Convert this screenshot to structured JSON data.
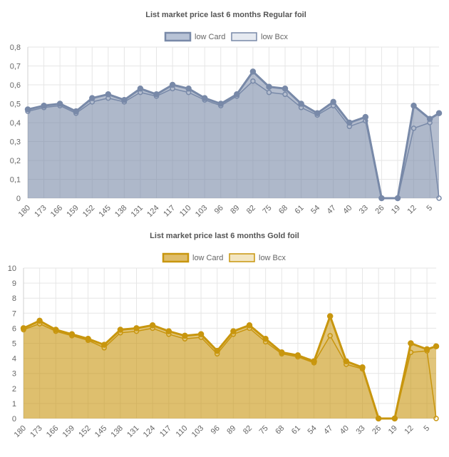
{
  "charts": [
    {
      "title": "List market price last 6 months Regular foil",
      "legend": [
        {
          "label": "low Card",
          "color": "#7889a8",
          "fill": "#b8c3d6"
        },
        {
          "label": "low Bcx",
          "color": "#7889a8",
          "fill": "#e6eaf1"
        }
      ],
      "y_ticks": [
        "0",
        "0,1",
        "0,2",
        "0,3",
        "0,4",
        "0,5",
        "0,6",
        "0,7",
        "0,8"
      ],
      "x_ticks": [
        "180",
        "173",
        "166",
        "159",
        "152",
        "145",
        "138",
        "131",
        "124",
        "117",
        "110",
        "103",
        "96",
        "89",
        "82",
        "75",
        "68",
        "61",
        "54",
        "47",
        "40",
        "33",
        "26",
        "19",
        "12",
        "5"
      ]
    },
    {
      "title": "List market price last 6 months Gold foil",
      "legend": [
        {
          "label": "low Card",
          "color": "#c8960e",
          "fill": "#dfbd6a"
        },
        {
          "label": "low Bcx",
          "color": "#c8960e",
          "fill": "#f3e6c2"
        }
      ],
      "y_ticks": [
        "0",
        "1",
        "2",
        "3",
        "4",
        "5",
        "6",
        "7",
        "8",
        "9",
        "10"
      ],
      "x_ticks": [
        "180",
        "173",
        "166",
        "159",
        "152",
        "145",
        "138",
        "131",
        "124",
        "117",
        "110",
        "103",
        "96",
        "89",
        "82",
        "75",
        "68",
        "61",
        "54",
        "47",
        "40",
        "33",
        "26",
        "19",
        "12",
        "5"
      ]
    }
  ],
  "chart_data": [
    {
      "type": "line",
      "title": "List market price last 6 months Regular foil",
      "x_direction": "days ago, descending",
      "x": [
        180,
        173,
        166,
        159,
        152,
        145,
        138,
        131,
        124,
        117,
        110,
        103,
        96,
        89,
        82,
        75,
        68,
        61,
        54,
        47,
        40,
        33,
        26,
        19,
        12,
        5,
        1
      ],
      "ylim": [
        0,
        0.8
      ],
      "grid": true,
      "legend_position": "top-center",
      "color": "#7889a8",
      "series": [
        {
          "name": "low Card",
          "values": [
            0.47,
            0.49,
            0.5,
            0.46,
            0.53,
            0.55,
            0.52,
            0.58,
            0.55,
            0.6,
            0.58,
            0.53,
            0.5,
            0.55,
            0.67,
            0.59,
            0.58,
            0.5,
            0.45,
            0.51,
            0.4,
            0.43,
            0.0,
            0.0,
            0.49,
            0.42,
            0.45
          ]
        },
        {
          "name": "low Bcx",
          "values": [
            0.46,
            0.48,
            0.49,
            0.45,
            0.51,
            0.53,
            0.51,
            0.56,
            0.54,
            0.58,
            0.56,
            0.52,
            0.49,
            0.54,
            0.62,
            0.56,
            0.55,
            0.48,
            0.44,
            0.49,
            0.38,
            0.41,
            0.0,
            0.0,
            0.37,
            0.4,
            0.0
          ]
        }
      ]
    },
    {
      "type": "line",
      "title": "List market price last 6 months Gold foil",
      "x_direction": "days ago, descending",
      "x": [
        180,
        173,
        166,
        159,
        152,
        145,
        138,
        131,
        124,
        117,
        110,
        103,
        96,
        89,
        82,
        75,
        68,
        61,
        54,
        47,
        40,
        33,
        26,
        19,
        12,
        5,
        1
      ],
      "ylim": [
        0,
        10
      ],
      "grid": true,
      "legend_position": "top-center",
      "color": "#c8960e",
      "series": [
        {
          "name": "low Card",
          "values": [
            6.0,
            6.5,
            5.9,
            5.6,
            5.3,
            4.9,
            5.9,
            6.0,
            6.2,
            5.8,
            5.5,
            5.6,
            4.5,
            5.8,
            6.2,
            5.3,
            4.4,
            4.2,
            3.8,
            6.8,
            3.8,
            3.4,
            0.0,
            0.0,
            5.0,
            4.6,
            4.8
          ]
        },
        {
          "name": "low Bcx",
          "values": [
            5.9,
            6.3,
            5.8,
            5.5,
            5.2,
            4.7,
            5.7,
            5.8,
            6.0,
            5.6,
            5.3,
            5.4,
            4.3,
            5.6,
            6.0,
            5.1,
            4.3,
            4.1,
            3.7,
            5.5,
            3.6,
            3.3,
            0.0,
            0.0,
            4.4,
            4.5,
            0.0
          ]
        }
      ]
    }
  ]
}
